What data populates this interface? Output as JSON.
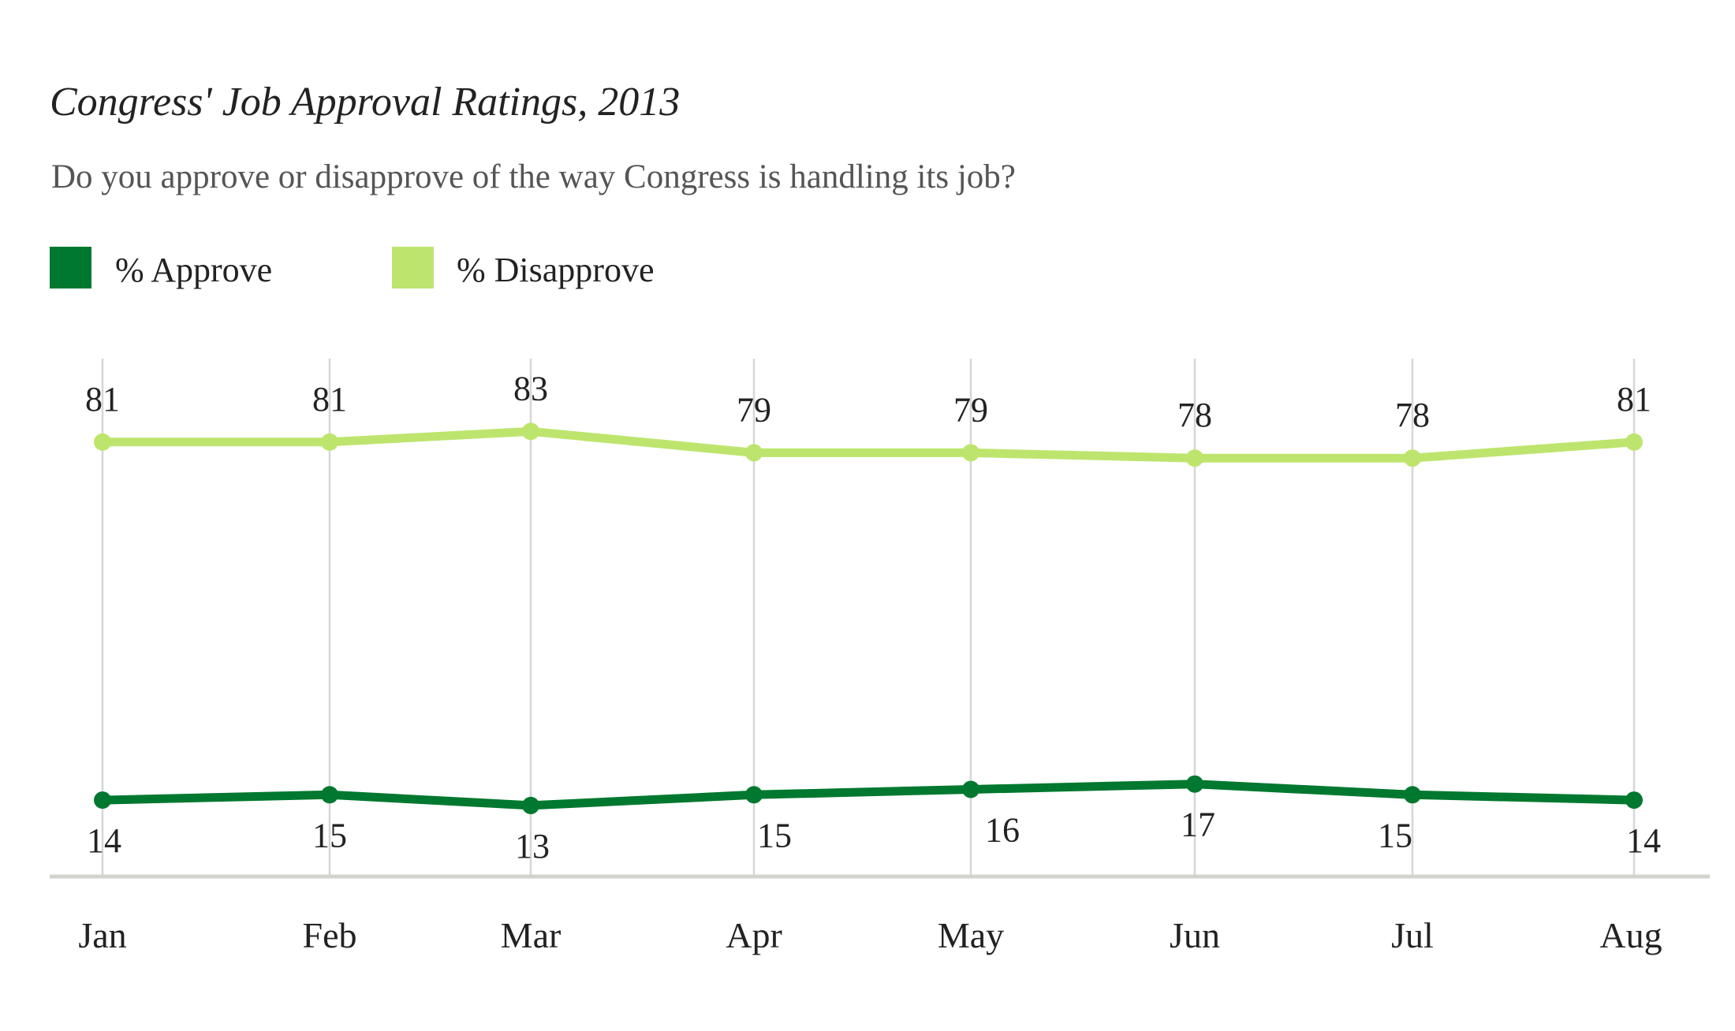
{
  "title": "Congress' Job Approval Ratings, 2013",
  "subtitle": "Do you approve or disapprove of the way Congress is handling its job?",
  "legend": [
    {
      "label": "% Approve",
      "color": "#00782f"
    },
    {
      "label": "% Disapprove",
      "color": "#bde56d"
    }
  ],
  "chart_data": {
    "type": "line",
    "title": "Congress' Job Approval Ratings, 2013",
    "subtitle": "Do you approve or disapprove of the way Congress is handling its job?",
    "categories": [
      "Jan",
      "Feb",
      "Mar",
      "Apr",
      "May",
      "Jun",
      "Jul",
      "Aug"
    ],
    "series": [
      {
        "name": "% Approve",
        "color": "#00782f",
        "values": [
          14,
          15,
          13,
          15,
          16,
          17,
          15,
          14
        ]
      },
      {
        "name": "% Disapprove",
        "color": "#bde56d",
        "values": [
          81,
          81,
          83,
          79,
          79,
          78,
          78,
          81
        ]
      }
    ],
    "xlabel": "",
    "ylabel": "",
    "ylim": [
      0,
      100
    ],
    "grid": "vertical",
    "legend_position": "top-left",
    "data_labels": true
  }
}
